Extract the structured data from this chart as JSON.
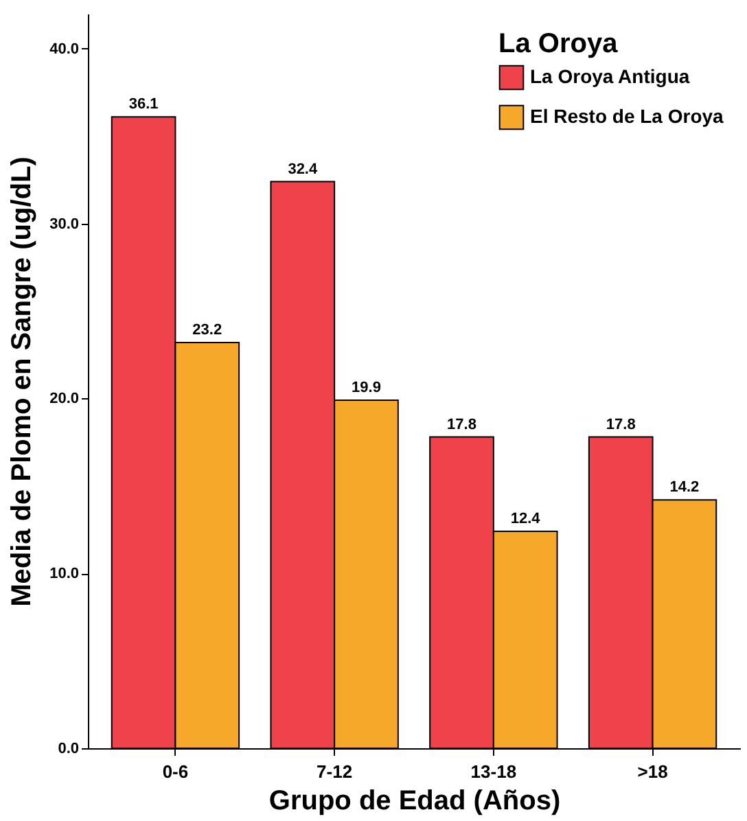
{
  "chart_data": {
    "type": "bar",
    "xlabel": "Grupo de Edad (Años)",
    "ylabel": "Media de Plomo en Sangre (ug/dL)",
    "legend_title": "La Oroya",
    "categories": [
      "0-6",
      "7-12",
      "13-18",
      ">18"
    ],
    "series": [
      {
        "name": "La Oroya Antigua",
        "color": "#f0424b",
        "values": [
          36.1,
          32.4,
          17.8,
          17.8
        ]
      },
      {
        "name": "El Resto de La Oroya",
        "color": "#f6a82b",
        "values": [
          23.2,
          19.9,
          12.4,
          14.2
        ]
      }
    ],
    "ylim": [
      0,
      42
    ],
    "yticks": [
      {
        "value": 0,
        "label": "0.0"
      },
      {
        "value": 10,
        "label": "10.0"
      },
      {
        "value": 20,
        "label": "20.0"
      },
      {
        "value": 30,
        "label": "30.0"
      },
      {
        "value": 40,
        "label": "40.0"
      }
    ],
    "data_labels": true,
    "grid": false,
    "legend": "top right"
  }
}
